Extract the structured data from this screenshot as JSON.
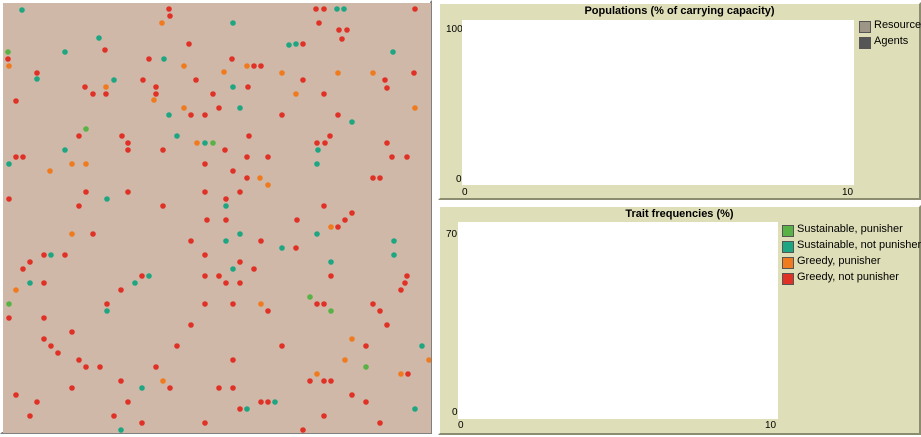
{
  "panels": {
    "populations": {
      "title": "Populations (% of carrying capacity)",
      "y_max_label": "100",
      "y_min_label": "0",
      "x_min_label": "0",
      "x_max_label": "10",
      "legend": [
        {
          "label": "Resource",
          "color": "#9d9585"
        },
        {
          "label": "Agents",
          "color": "#555555"
        }
      ]
    },
    "traits": {
      "title": "Trait frequencies (%)",
      "y_max_label": "70",
      "y_min_label": "0",
      "x_min_label": "0",
      "x_max_label": "10",
      "legend": [
        {
          "label": "Sustainable, punisher",
          "color": "#59b245"
        },
        {
          "label": "Sustainable, not punisher",
          "color": "#1ea682"
        },
        {
          "label": "Greedy, punisher",
          "color": "#f07a1e"
        },
        {
          "label": "Greedy, not punisher",
          "color": "#e03127"
        }
      ]
    }
  },
  "world": {
    "background": "#d0b8a8",
    "colors": {
      "sp": "#59b245",
      "sn": "#1ea682",
      "gp": "#f07a1e",
      "gn": "#e03127"
    }
  }
}
